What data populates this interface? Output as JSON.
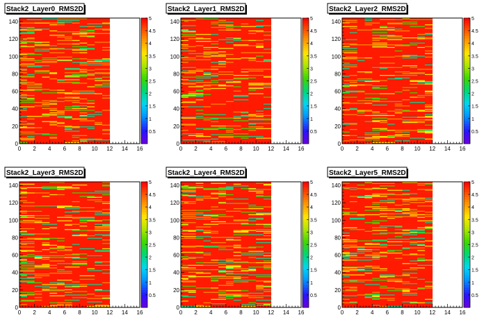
{
  "chart_data": [
    {
      "type": "heatmap",
      "title": "Stack2_Layer0_RMS2D",
      "xlim": [
        0,
        16
      ],
      "ylim": [
        0,
        144
      ],
      "x_ticks": [
        0,
        2,
        4,
        6,
        8,
        10,
        12,
        14,
        16
      ],
      "y_ticks": [
        0,
        20,
        40,
        60,
        80,
        100,
        120,
        140
      ],
      "z_range": [
        0,
        5
      ],
      "z_ticks": [
        0.5,
        1,
        1.5,
        2,
        2.5,
        3,
        3.5,
        4,
        4.5,
        5
      ],
      "filled_x_range": [
        0,
        12
      ],
      "filled_y_range": [
        0,
        144
      ],
      "cell_size": [
        1,
        1
      ]
    },
    {
      "type": "heatmap",
      "title": "Stack2_Layer1_RMS2D",
      "xlim": [
        0,
        16
      ],
      "ylim": [
        0,
        144
      ],
      "x_ticks": [
        0,
        2,
        4,
        6,
        8,
        10,
        12,
        14,
        16
      ],
      "y_ticks": [
        0,
        20,
        40,
        60,
        80,
        100,
        120,
        140
      ],
      "z_range": [
        0,
        5
      ],
      "z_ticks": [
        0.5,
        1,
        1.5,
        2,
        2.5,
        3,
        3.5,
        4,
        4.5,
        5
      ],
      "filled_x_range": [
        0,
        12
      ],
      "filled_y_range": [
        0,
        144
      ],
      "cell_size": [
        1,
        1
      ]
    },
    {
      "type": "heatmap",
      "title": "Stack2_Layer2_RMS2D",
      "xlim": [
        0,
        16
      ],
      "ylim": [
        0,
        144
      ],
      "x_ticks": [
        0,
        2,
        4,
        6,
        8,
        10,
        12,
        14,
        16
      ],
      "y_ticks": [
        0,
        20,
        40,
        60,
        80,
        100,
        120,
        140
      ],
      "z_range": [
        0,
        5
      ],
      "z_ticks": [
        0.5,
        1,
        1.5,
        2,
        2.5,
        3,
        3.5,
        4,
        4.5,
        5
      ],
      "filled_x_range": [
        0,
        12
      ],
      "filled_y_range": [
        0,
        144
      ],
      "cell_size": [
        1,
        1
      ]
    },
    {
      "type": "heatmap",
      "title": "Stack2_Layer3_RMS2D",
      "xlim": [
        0,
        16
      ],
      "ylim": [
        0,
        144
      ],
      "x_ticks": [
        0,
        2,
        4,
        6,
        8,
        10,
        12,
        14,
        16
      ],
      "y_ticks": [
        0,
        20,
        40,
        60,
        80,
        100,
        120,
        140
      ],
      "z_range": [
        0,
        5
      ],
      "z_ticks": [
        0.5,
        1,
        1.5,
        2,
        2.5,
        3,
        3.5,
        4,
        4.5,
        5
      ],
      "filled_x_range": [
        0,
        12
      ],
      "filled_y_range": [
        0,
        144
      ],
      "cell_size": [
        1,
        1
      ]
    },
    {
      "type": "heatmap",
      "title": "Stack2_Layer4_RMS2D",
      "xlim": [
        0,
        16
      ],
      "ylim": [
        0,
        144
      ],
      "x_ticks": [
        0,
        2,
        4,
        6,
        8,
        10,
        12,
        14,
        16
      ],
      "y_ticks": [
        0,
        20,
        40,
        60,
        80,
        100,
        120,
        140
      ],
      "z_range": [
        0,
        5
      ],
      "z_ticks": [
        0.5,
        1,
        1.5,
        2,
        2.5,
        3,
        3.5,
        4,
        4.5,
        5
      ],
      "filled_x_range": [
        0,
        12
      ],
      "filled_y_range": [
        0,
        144
      ],
      "cell_size": [
        1,
        1
      ]
    },
    {
      "type": "heatmap",
      "title": "Stack2_Layer5_RMS2D",
      "xlim": [
        0,
        16
      ],
      "ylim": [
        0,
        144
      ],
      "x_ticks": [
        0,
        2,
        4,
        6,
        8,
        10,
        12,
        14,
        16
      ],
      "y_ticks": [
        0,
        20,
        40,
        60,
        80,
        100,
        120,
        140
      ],
      "z_range": [
        0,
        5
      ],
      "z_ticks": [
        0.5,
        1,
        1.5,
        2,
        2.5,
        3,
        3.5,
        4,
        4.5,
        5
      ],
      "filled_x_range": [
        0,
        12
      ],
      "filled_y_range": [
        0,
        144
      ],
      "cell_size": [
        1,
        1
      ]
    }
  ]
}
